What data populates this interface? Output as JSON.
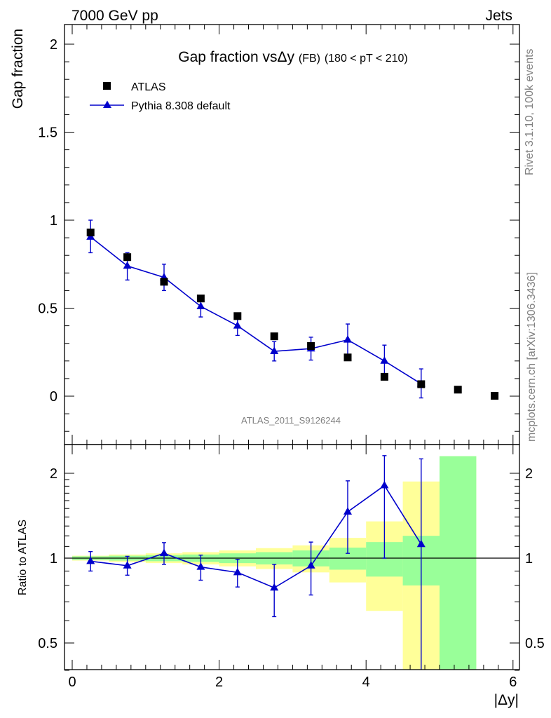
{
  "header": {
    "left": "7000 GeV pp",
    "right": "Jets"
  },
  "side_labels": {
    "rivet": "Rivet 3.1.10,  100k events",
    "mcplots": "mcplots.cern.ch [arXiv:1306.3436]"
  },
  "watermark": "ATLAS_2011_S9126244",
  "colors": {
    "mc": "#0000cc",
    "data": "#000000",
    "band_green": "#99ff99",
    "band_yellow": "#ffff99"
  },
  "chart_data": [
    {
      "type": "scatter",
      "title": "Gap fraction vsΔy",
      "title_suffix": "(FB)",
      "title_range": "(180 < pT < 210)",
      "ylabel": "Gap fraction",
      "xlim": [
        -0.1,
        6.0
      ],
      "ylim": [
        -0.25,
        2.12
      ],
      "yticks": [
        0,
        0.5,
        1,
        1.5,
        2
      ],
      "ytick_labels": [
        "0",
        "0.5",
        "1",
        "1.5",
        "2"
      ],
      "legend_position": "top-left",
      "series": [
        {
          "name": "ATLAS",
          "marker": "square",
          "x": [
            0.25,
            0.75,
            1.25,
            1.75,
            2.25,
            2.75,
            3.25,
            3.75,
            4.25,
            4.75,
            5.25,
            5.75
          ],
          "y": [
            0.93,
            0.79,
            0.65,
            0.555,
            0.455,
            0.34,
            0.285,
            0.22,
            0.11,
            0.068,
            0.037,
            0.002
          ]
        },
        {
          "name": "Pythia 8.308 default",
          "marker": "triangle",
          "x": [
            0.25,
            0.75,
            1.25,
            1.75,
            2.25,
            2.75,
            3.25,
            3.75,
            4.25,
            4.75
          ],
          "y": [
            0.905,
            0.74,
            0.675,
            0.51,
            0.4,
            0.255,
            0.27,
            0.32,
            0.2,
            0.07
          ],
          "yerr_lo": [
            0.09,
            0.08,
            0.075,
            0.06,
            0.055,
            0.055,
            0.065,
            0.09,
            0.09,
            0.08
          ],
          "yerr_hi": [
            0.095,
            0.075,
            0.075,
            0.06,
            0.055,
            0.055,
            0.065,
            0.09,
            0.09,
            0.085
          ]
        }
      ]
    },
    {
      "type": "scatter",
      "ylabel": "Ratio to ATLAS",
      "xlabel": "|Δy|",
      "xlim": [
        -0.1,
        6.0
      ],
      "ylim": [
        0.35,
        2.3
      ],
      "log_y": true,
      "xticks": [
        0,
        2,
        4,
        6
      ],
      "xtick_labels": [
        "0",
        "2",
        "4",
        "6"
      ],
      "yticks": [
        0.5,
        1,
        2
      ],
      "ytick_labels": [
        "0.5",
        "1",
        "2"
      ],
      "reference_line": 1,
      "bands": {
        "bin_edges": [
          0,
          0.5,
          1.0,
          1.5,
          2.0,
          2.5,
          3.0,
          3.5,
          4.0,
          4.5,
          5.0,
          5.5
        ],
        "green": [
          [
            0.985,
            1.015
          ],
          [
            0.98,
            1.02
          ],
          [
            0.975,
            1.025
          ],
          [
            0.97,
            1.03
          ],
          [
            0.96,
            1.04
          ],
          [
            0.95,
            1.05
          ],
          [
            0.935,
            1.065
          ],
          [
            0.91,
            1.09
          ],
          [
            0.86,
            1.14
          ],
          [
            0.8,
            1.2
          ],
          [
            0.35,
            2.3
          ]
        ],
        "yellow": [
          [
            0.98,
            1.02
          ],
          [
            0.97,
            1.03
          ],
          [
            0.96,
            1.04
          ],
          [
            0.95,
            1.05
          ],
          [
            0.935,
            1.065
          ],
          [
            0.915,
            1.085
          ],
          [
            0.89,
            1.11
          ],
          [
            0.82,
            1.18
          ],
          [
            0.65,
            1.35
          ],
          [
            0.35,
            1.87
          ],
          [
            0.35,
            2.3
          ]
        ]
      },
      "series": [
        {
          "name": "Pythia 8.308 default",
          "x": [
            0.25,
            0.75,
            1.25,
            1.75,
            2.25,
            2.75,
            3.25,
            3.75,
            4.25,
            4.75
          ],
          "y": [
            0.975,
            0.94,
            1.04,
            0.93,
            0.89,
            0.785,
            0.94,
            1.46,
            1.81,
            1.12
          ],
          "yerr_lo": [
            0.075,
            0.07,
            0.09,
            0.095,
            0.1,
            0.165,
            0.2,
            0.42,
            0.81,
            0.77
          ],
          "yerr_hi": [
            0.08,
            0.075,
            0.095,
            0.095,
            0.1,
            0.165,
            0.2,
            0.42,
            0.5,
            1.13
          ]
        }
      ]
    }
  ]
}
